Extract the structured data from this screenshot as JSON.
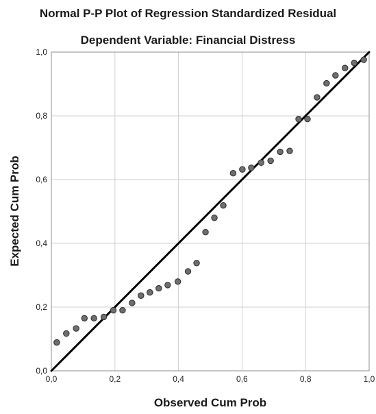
{
  "chart_data": {
    "type": "scatter",
    "title": "Normal P-P Plot of Regression Standardized Residual",
    "subtitle": "Dependent Variable: Financial Distress",
    "xlabel": "Observed Cum Prob",
    "ylabel": "Expected Cum Prob",
    "xlim": [
      0,
      1
    ],
    "ylim": [
      0,
      1
    ],
    "xticks": [
      "0,0",
      "0,2",
      "0,4",
      "0,6",
      "0,8",
      "1,0"
    ],
    "yticks": [
      "0,0",
      "0,2",
      "0,4",
      "0,6",
      "0,8",
      "1,0"
    ],
    "grid": true,
    "reference_line": {
      "from": [
        0,
        0
      ],
      "to": [
        1,
        1
      ]
    },
    "points": [
      {
        "x": 0.017,
        "y": 0.089
      },
      {
        "x": 0.047,
        "y": 0.117
      },
      {
        "x": 0.078,
        "y": 0.133
      },
      {
        "x": 0.104,
        "y": 0.165
      },
      {
        "x": 0.134,
        "y": 0.165
      },
      {
        "x": 0.165,
        "y": 0.169
      },
      {
        "x": 0.195,
        "y": 0.19
      },
      {
        "x": 0.224,
        "y": 0.19
      },
      {
        "x": 0.254,
        "y": 0.213
      },
      {
        "x": 0.282,
        "y": 0.236
      },
      {
        "x": 0.31,
        "y": 0.246
      },
      {
        "x": 0.338,
        "y": 0.259
      },
      {
        "x": 0.366,
        "y": 0.269
      },
      {
        "x": 0.398,
        "y": 0.28
      },
      {
        "x": 0.43,
        "y": 0.312
      },
      {
        "x": 0.457,
        "y": 0.338
      },
      {
        "x": 0.485,
        "y": 0.435
      },
      {
        "x": 0.513,
        "y": 0.48
      },
      {
        "x": 0.541,
        "y": 0.519
      },
      {
        "x": 0.572,
        "y": 0.62
      },
      {
        "x": 0.601,
        "y": 0.632
      },
      {
        "x": 0.629,
        "y": 0.637
      },
      {
        "x": 0.66,
        "y": 0.653
      },
      {
        "x": 0.69,
        "y": 0.659
      },
      {
        "x": 0.72,
        "y": 0.687
      },
      {
        "x": 0.75,
        "y": 0.69
      },
      {
        "x": 0.778,
        "y": 0.79
      },
      {
        "x": 0.806,
        "y": 0.79
      },
      {
        "x": 0.836,
        "y": 0.858
      },
      {
        "x": 0.866,
        "y": 0.902
      },
      {
        "x": 0.894,
        "y": 0.927
      },
      {
        "x": 0.924,
        "y": 0.95
      },
      {
        "x": 0.953,
        "y": 0.966
      },
      {
        "x": 0.983,
        "y": 0.976
      }
    ],
    "colors": {
      "point_fill": "#6e6e6e",
      "point_stroke": "#2b2b2b",
      "line": "#000000",
      "grid": "#cfcfcf",
      "axis": "#8c8c8c"
    }
  }
}
